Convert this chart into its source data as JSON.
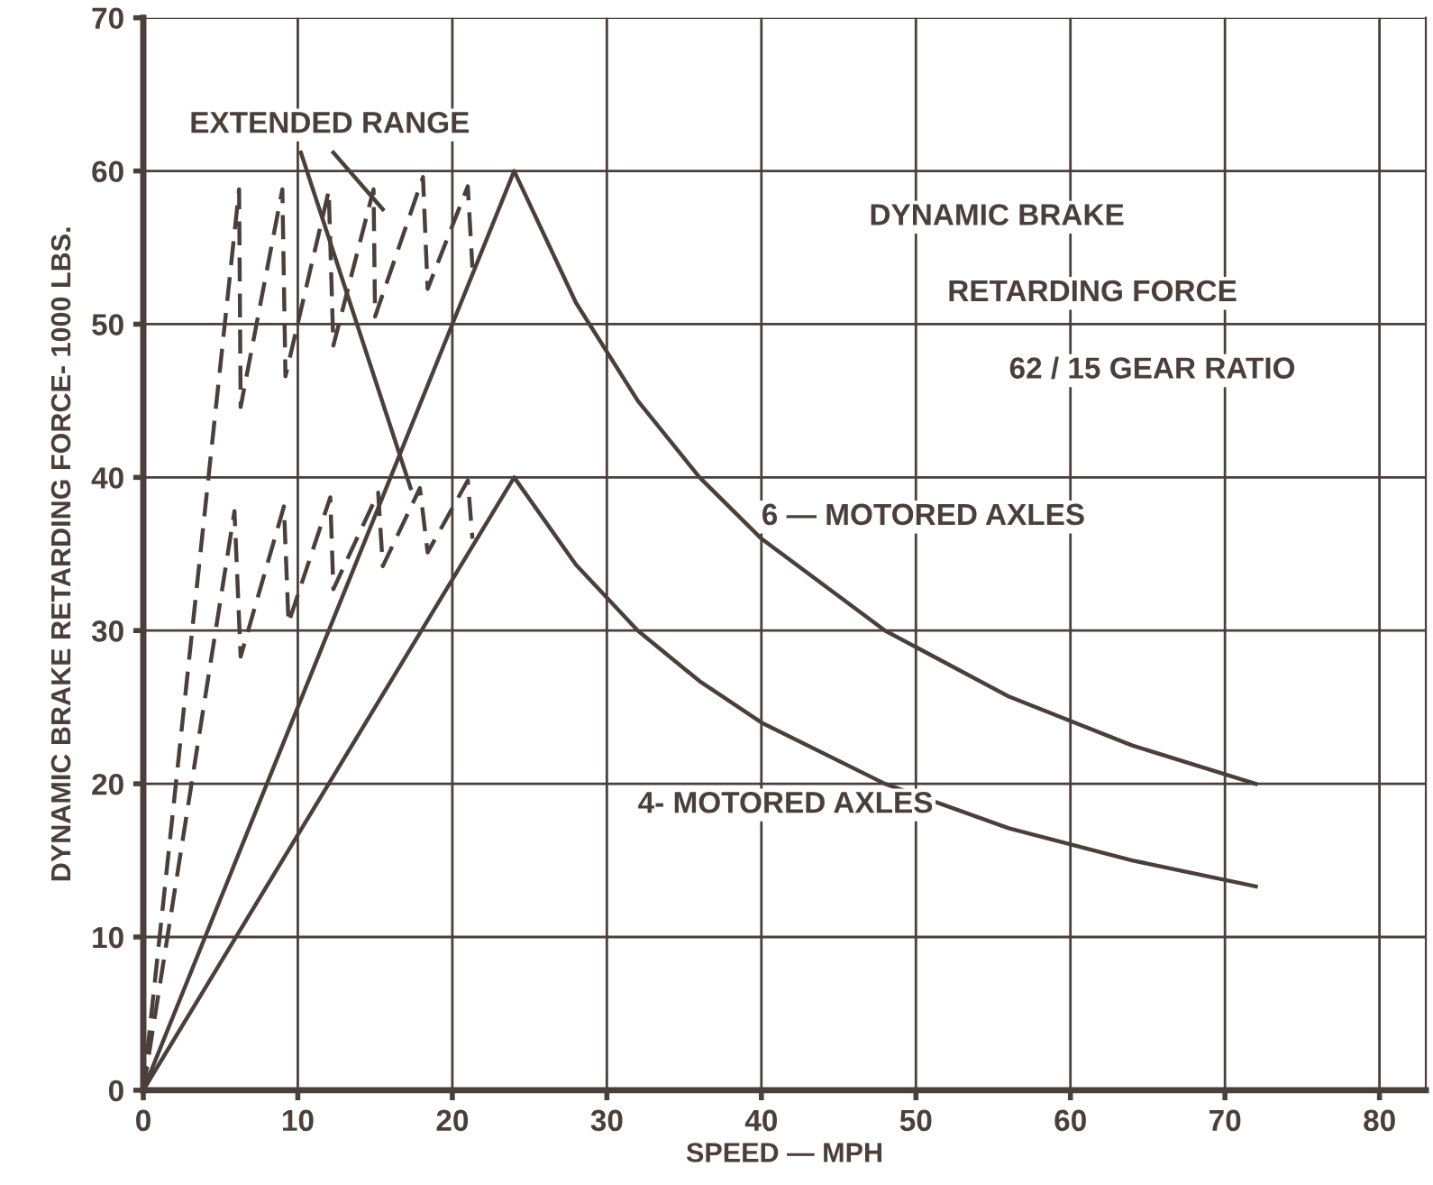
{
  "chart_data": {
    "type": "line",
    "xlabel": "SPEED — MPH",
    "ylabel": "DYNAMIC BRAKE RETARDING FORCE- 1000 LBS.",
    "annotations": [
      "DYNAMIC BRAKE",
      "RETARDING FORCE",
      "62 / 15 GEAR RATIO",
      "EXTENDED RANGE"
    ],
    "series": [
      {
        "name": "6 — MOTORED AXLES",
        "color": "#4a3f3a",
        "line_style": "solid",
        "x": [
          0,
          24,
          28,
          32,
          36,
          40,
          48,
          56,
          64,
          72
        ],
        "values": [
          0,
          60,
          51.4,
          45,
          40,
          36,
          30,
          25.7,
          22.5,
          20
        ]
      },
      {
        "name": "4- MOTORED AXLES",
        "color": "#4a3f3a",
        "line_style": "solid",
        "x": [
          0,
          24,
          28,
          32,
          36,
          40,
          48,
          56,
          64,
          72
        ],
        "values": [
          0,
          40,
          34.3,
          30,
          26.7,
          24,
          20,
          17.1,
          15,
          13.3
        ]
      },
      {
        "color": "#4a3f3a",
        "line_style": "dashed",
        "x": [
          0,
          6.2,
          6.3,
          9.0,
          9.2,
          12.0,
          12.3,
          14.9,
          15.0,
          18.1,
          18.4,
          21.0,
          21.3
        ],
        "values": [
          0,
          58.8,
          44.6,
          58.8,
          46.6,
          58.7,
          48.6,
          58.8,
          50.5,
          59.6,
          52.3,
          59,
          53.7
        ]
      },
      {
        "color": "#4a3f3a",
        "line_style": "dashed",
        "x": [
          0,
          5.9,
          6.3,
          9.1,
          9.4,
          12.1,
          12.3,
          15.2,
          15.5,
          17.9,
          18.4,
          21.0,
          21.3
        ],
        "values": [
          0,
          37.8,
          28.3,
          38.1,
          30.5,
          38.7,
          32.7,
          39,
          34.2,
          39.3,
          35.1,
          39.8,
          36
        ]
      },
      {
        "color": "#4a3f3a",
        "line_style": "solid",
        "x": [
          10.2,
          17.3
        ],
        "values": [
          61.2,
          39.3
        ]
      },
      {
        "color": "#4a3f3a",
        "line_style": "solid",
        "x": [
          12.3,
          15.5
        ],
        "values": [
          61.2,
          57.5
        ]
      }
    ],
    "xlim": [
      0,
      83
    ],
    "ylim": [
      0,
      70
    ],
    "xticks": [
      0,
      10,
      20,
      30,
      40,
      50,
      60,
      70,
      80
    ],
    "yticks": [
      0,
      10,
      20,
      30,
      40,
      50,
      60,
      70
    ],
    "grid": true,
    "marker": "none",
    "legend": false
  }
}
